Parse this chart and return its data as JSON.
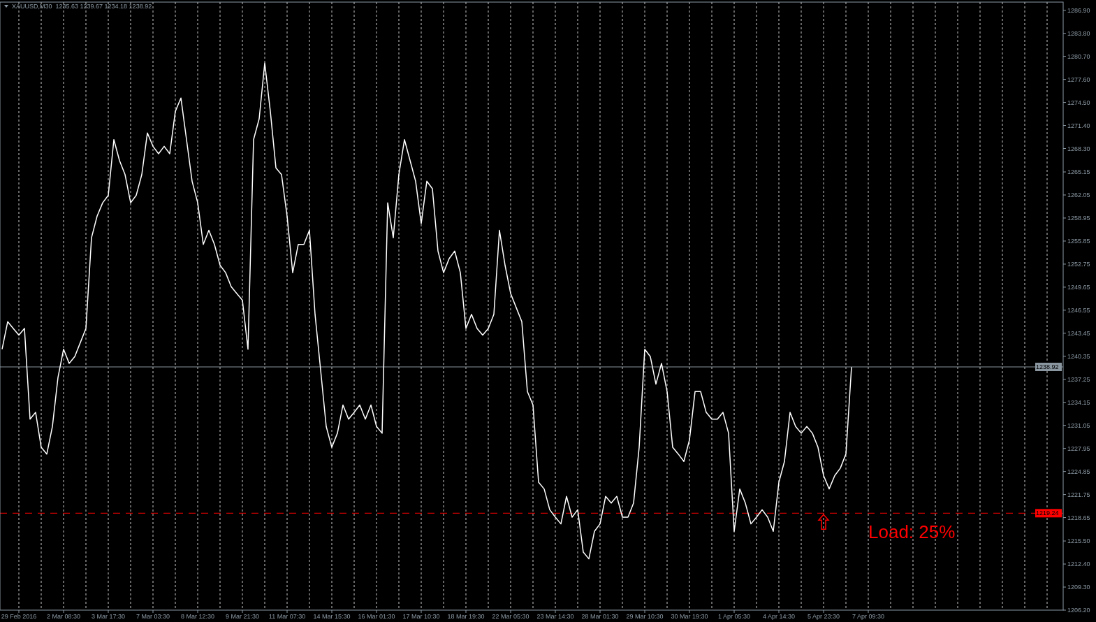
{
  "chart_data": {
    "type": "line",
    "title": "XAUUSD,M30  1235.63 1239.67 1234.18 1238.92",
    "categories": [
      null,
      null,
      null,
      "29 Feb 2016",
      null,
      null,
      null,
      null,
      null,
      null,
      null,
      "2 Mar 08:30",
      null,
      null,
      null,
      null,
      null,
      null,
      null,
      "3 Mar 17:30",
      null,
      null,
      null,
      null,
      null,
      null,
      null,
      "7 Mar 03:30",
      null,
      null,
      null,
      null,
      null,
      null,
      null,
      "8 Mar 12:30",
      null,
      null,
      null,
      null,
      null,
      null,
      null,
      "9 Mar 21:30",
      null,
      null,
      null,
      null,
      null,
      null,
      null,
      "11 Mar 07:30",
      null,
      null,
      null,
      null,
      null,
      null,
      null,
      "14 Mar 15:30",
      null,
      null,
      null,
      null,
      null,
      null,
      null,
      "16 Mar 01:30",
      null,
      null,
      null,
      null,
      null,
      null,
      null,
      "17 Mar 10:30",
      null,
      null,
      null,
      null,
      null,
      null,
      null,
      "18 Mar 19:30",
      null,
      null,
      null,
      null,
      null,
      null,
      null,
      "22 Mar 05:30",
      null,
      null,
      null,
      null,
      null,
      null,
      null,
      "23 Mar 14:30",
      null,
      null,
      null,
      null,
      null,
      null,
      null,
      "28 Mar 01:30",
      null,
      null,
      null,
      null,
      null,
      null,
      null,
      "29 Mar 10:30",
      null,
      null,
      null,
      null,
      null,
      null,
      null,
      "30 Mar 19:30",
      null,
      null,
      null,
      null,
      null,
      null,
      null,
      "1 Apr 05:30",
      null,
      null,
      null,
      null,
      null,
      null,
      null,
      "4 Apr 14:30",
      null,
      null,
      null,
      null,
      null,
      null,
      null,
      "5 Apr 23:30",
      null,
      null,
      null,
      null,
      null,
      null,
      null,
      "7 Apr 09:30",
      null,
      null,
      null,
      null,
      null,
      null,
      null,
      null,
      null,
      null,
      null,
      null,
      null,
      null,
      null,
      null,
      null,
      null,
      null,
      null,
      null,
      null,
      null,
      null,
      null,
      null,
      null,
      null,
      null,
      null,
      null,
      null,
      null,
      null
    ],
    "series": [
      {
        "color": "#ffffff",
        "values": [
          1241.3,
          1245.0,
          1244.1,
          1243.2,
          1244.1,
          1231.9,
          1232.8,
          1228.1,
          1227.2,
          1230.9,
          1237.5,
          1241.3,
          1239.4,
          1240.3,
          1242.2,
          1244.1,
          1256.3,
          1259.2,
          1261.0,
          1262.0,
          1269.5,
          1266.7,
          1264.8,
          1261.0,
          1262.0,
          1264.8,
          1270.4,
          1268.6,
          1267.6,
          1268.6,
          1267.6,
          1273.3,
          1275.1,
          1269.5,
          1263.9,
          1261.0,
          1255.4,
          1257.3,
          1255.4,
          1252.6,
          1251.6,
          1249.7,
          1248.8,
          1247.9,
          1241.3,
          1269.5,
          1272.3,
          1279.8,
          1273.3,
          1265.7,
          1264.8,
          1259.2,
          1251.6,
          1255.4,
          1255.4,
          1257.3,
          1246.0,
          1238.5,
          1230.9,
          1228.1,
          1230.0,
          1233.8,
          1231.9,
          1232.8,
          1233.8,
          1231.9,
          1233.8,
          1230.9,
          1230.0,
          1261.0,
          1256.3,
          1264.8,
          1269.5,
          1266.7,
          1263.9,
          1258.2,
          1263.9,
          1262.9,
          1254.5,
          1251.6,
          1253.5,
          1254.5,
          1251.6,
          1244.1,
          1246.0,
          1244.1,
          1243.2,
          1244.1,
          1246.0,
          1257.3,
          1252.6,
          1248.8,
          1246.9,
          1245.0,
          1235.6,
          1233.8,
          1223.4,
          1222.5,
          1219.7,
          1218.7,
          1217.8,
          1221.5,
          1218.7,
          1219.7,
          1214.0,
          1213.1,
          1216.8,
          1217.8,
          1221.5,
          1220.6,
          1221.5,
          1218.7,
          1218.7,
          1220.6,
          1228.1,
          1241.3,
          1240.3,
          1236.6,
          1239.4,
          1235.6,
          1228.1,
          1227.2,
          1226.2,
          1229.1,
          1235.6,
          1235.6,
          1232.8,
          1231.9,
          1231.9,
          1232.8,
          1230.0,
          1216.8,
          1222.5,
          1220.6,
          1217.8,
          1218.7,
          1219.7,
          1218.7,
          1216.8,
          1223.4,
          1226.2,
          1232.8,
          1230.9,
          1230.0,
          1230.9,
          1230.0,
          1228.1,
          1224.3,
          1222.5,
          1224.3,
          1225.3,
          1227.2,
          1238.9,
          null,
          null,
          null,
          null,
          null,
          null,
          null,
          null,
          null,
          null,
          null,
          null,
          null,
          null,
          null,
          null,
          null,
          null,
          null,
          null,
          null,
          null,
          null,
          null,
          null,
          null,
          null,
          null,
          null,
          null,
          null,
          null,
          null,
          null,
          null,
          null,
          null
        ]
      }
    ],
    "ylim": [
      1206.2,
      1288.0
    ],
    "yticks": [
      {
        "value": 1206.2,
        "label": "1206.20"
      },
      {
        "value": 1209.3,
        "label": "1209.30"
      },
      {
        "value": 1212.4,
        "label": "1212.40"
      },
      {
        "value": 1215.5,
        "label": "1215.50"
      },
      {
        "value": 1218.65,
        "label": "1218.65"
      },
      {
        "value": 1221.75,
        "label": "1221.75"
      },
      {
        "value": 1224.85,
        "label": "1224.85"
      },
      {
        "value": 1227.95,
        "label": "1227.95"
      },
      {
        "value": 1231.05,
        "label": "1231.05"
      },
      {
        "value": 1234.15,
        "label": "1234.15"
      },
      {
        "value": 1237.25,
        "label": "1237.25"
      },
      {
        "value": 1240.35,
        "label": "1240.35"
      },
      {
        "value": 1243.45,
        "label": "1243.45"
      },
      {
        "value": 1246.55,
        "label": "1246.55"
      },
      {
        "value": 1249.65,
        "label": "1249.65"
      },
      {
        "value": 1252.75,
        "label": "1252.75"
      },
      {
        "value": 1255.85,
        "label": "1255.85"
      },
      {
        "value": 1258.95,
        "label": "1258.95"
      },
      {
        "value": 1262.05,
        "label": "1262.05"
      },
      {
        "value": 1265.15,
        "label": "1265.15"
      },
      {
        "value": 1268.3,
        "label": "1268.30"
      },
      {
        "value": 1271.4,
        "label": "1271.40"
      },
      {
        "value": 1274.5,
        "label": "1274.50"
      },
      {
        "value": 1277.6,
        "label": "1277.60"
      },
      {
        "value": 1280.7,
        "label": "1280.70"
      },
      {
        "value": 1283.8,
        "label": "1283.80"
      },
      {
        "value": 1286.9,
        "label": "1286.90"
      }
    ],
    "grid": "x",
    "ref_lines": [
      {
        "axis": "y",
        "value": 1238.92,
        "label": "1238.92",
        "color": "#8a96a0",
        "line_style": "solid"
      },
      {
        "axis": "y",
        "value": 1219.24,
        "label": "1219.24",
        "color": "#ff0000",
        "line_style": "dashed"
      }
    ],
    "annotations": [
      "Load: 25%"
    ]
  }
}
